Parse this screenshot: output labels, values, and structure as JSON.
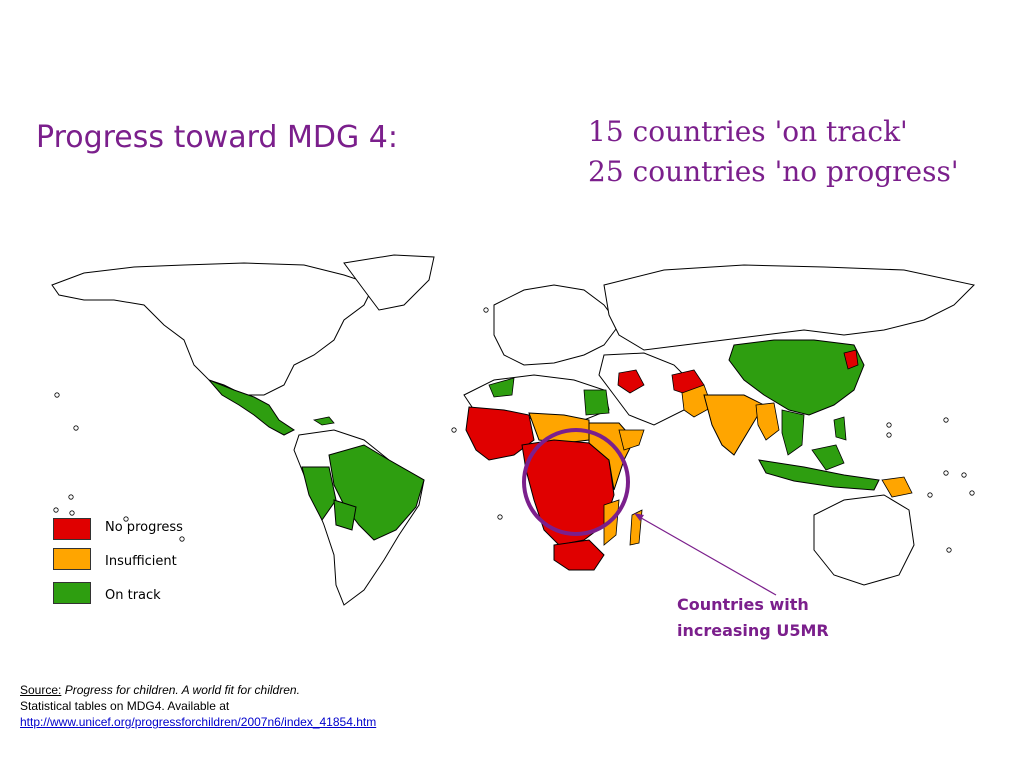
{
  "title": "Progress toward MDG 4:",
  "counts": {
    "line1": "15 countries 'on track'",
    "line2": "25 countries 'no progress'"
  },
  "legend": [
    {
      "label": "No progress",
      "color": "#e00000"
    },
    {
      "label": "Insufficient",
      "color": "#ffa500"
    },
    {
      "label": "On track",
      "color": "#2e9e10"
    }
  ],
  "annotation": {
    "line1": "Countries with",
    "line2": "increasing U5MR",
    "color": "#7b1f8c"
  },
  "source": {
    "label": "Source:",
    "italic": "Progress for children. A world fit for children.",
    "line2": "Statistical tables on MDG4. Available at",
    "url": "http://www.unicef.org/progressforchildren/2007n6/index_41854.htm"
  },
  "colors": {
    "no_progress": "#e00000",
    "insufficient": "#ffa500",
    "on_track": "#2e9e10",
    "accent": "#7b1f8c"
  }
}
